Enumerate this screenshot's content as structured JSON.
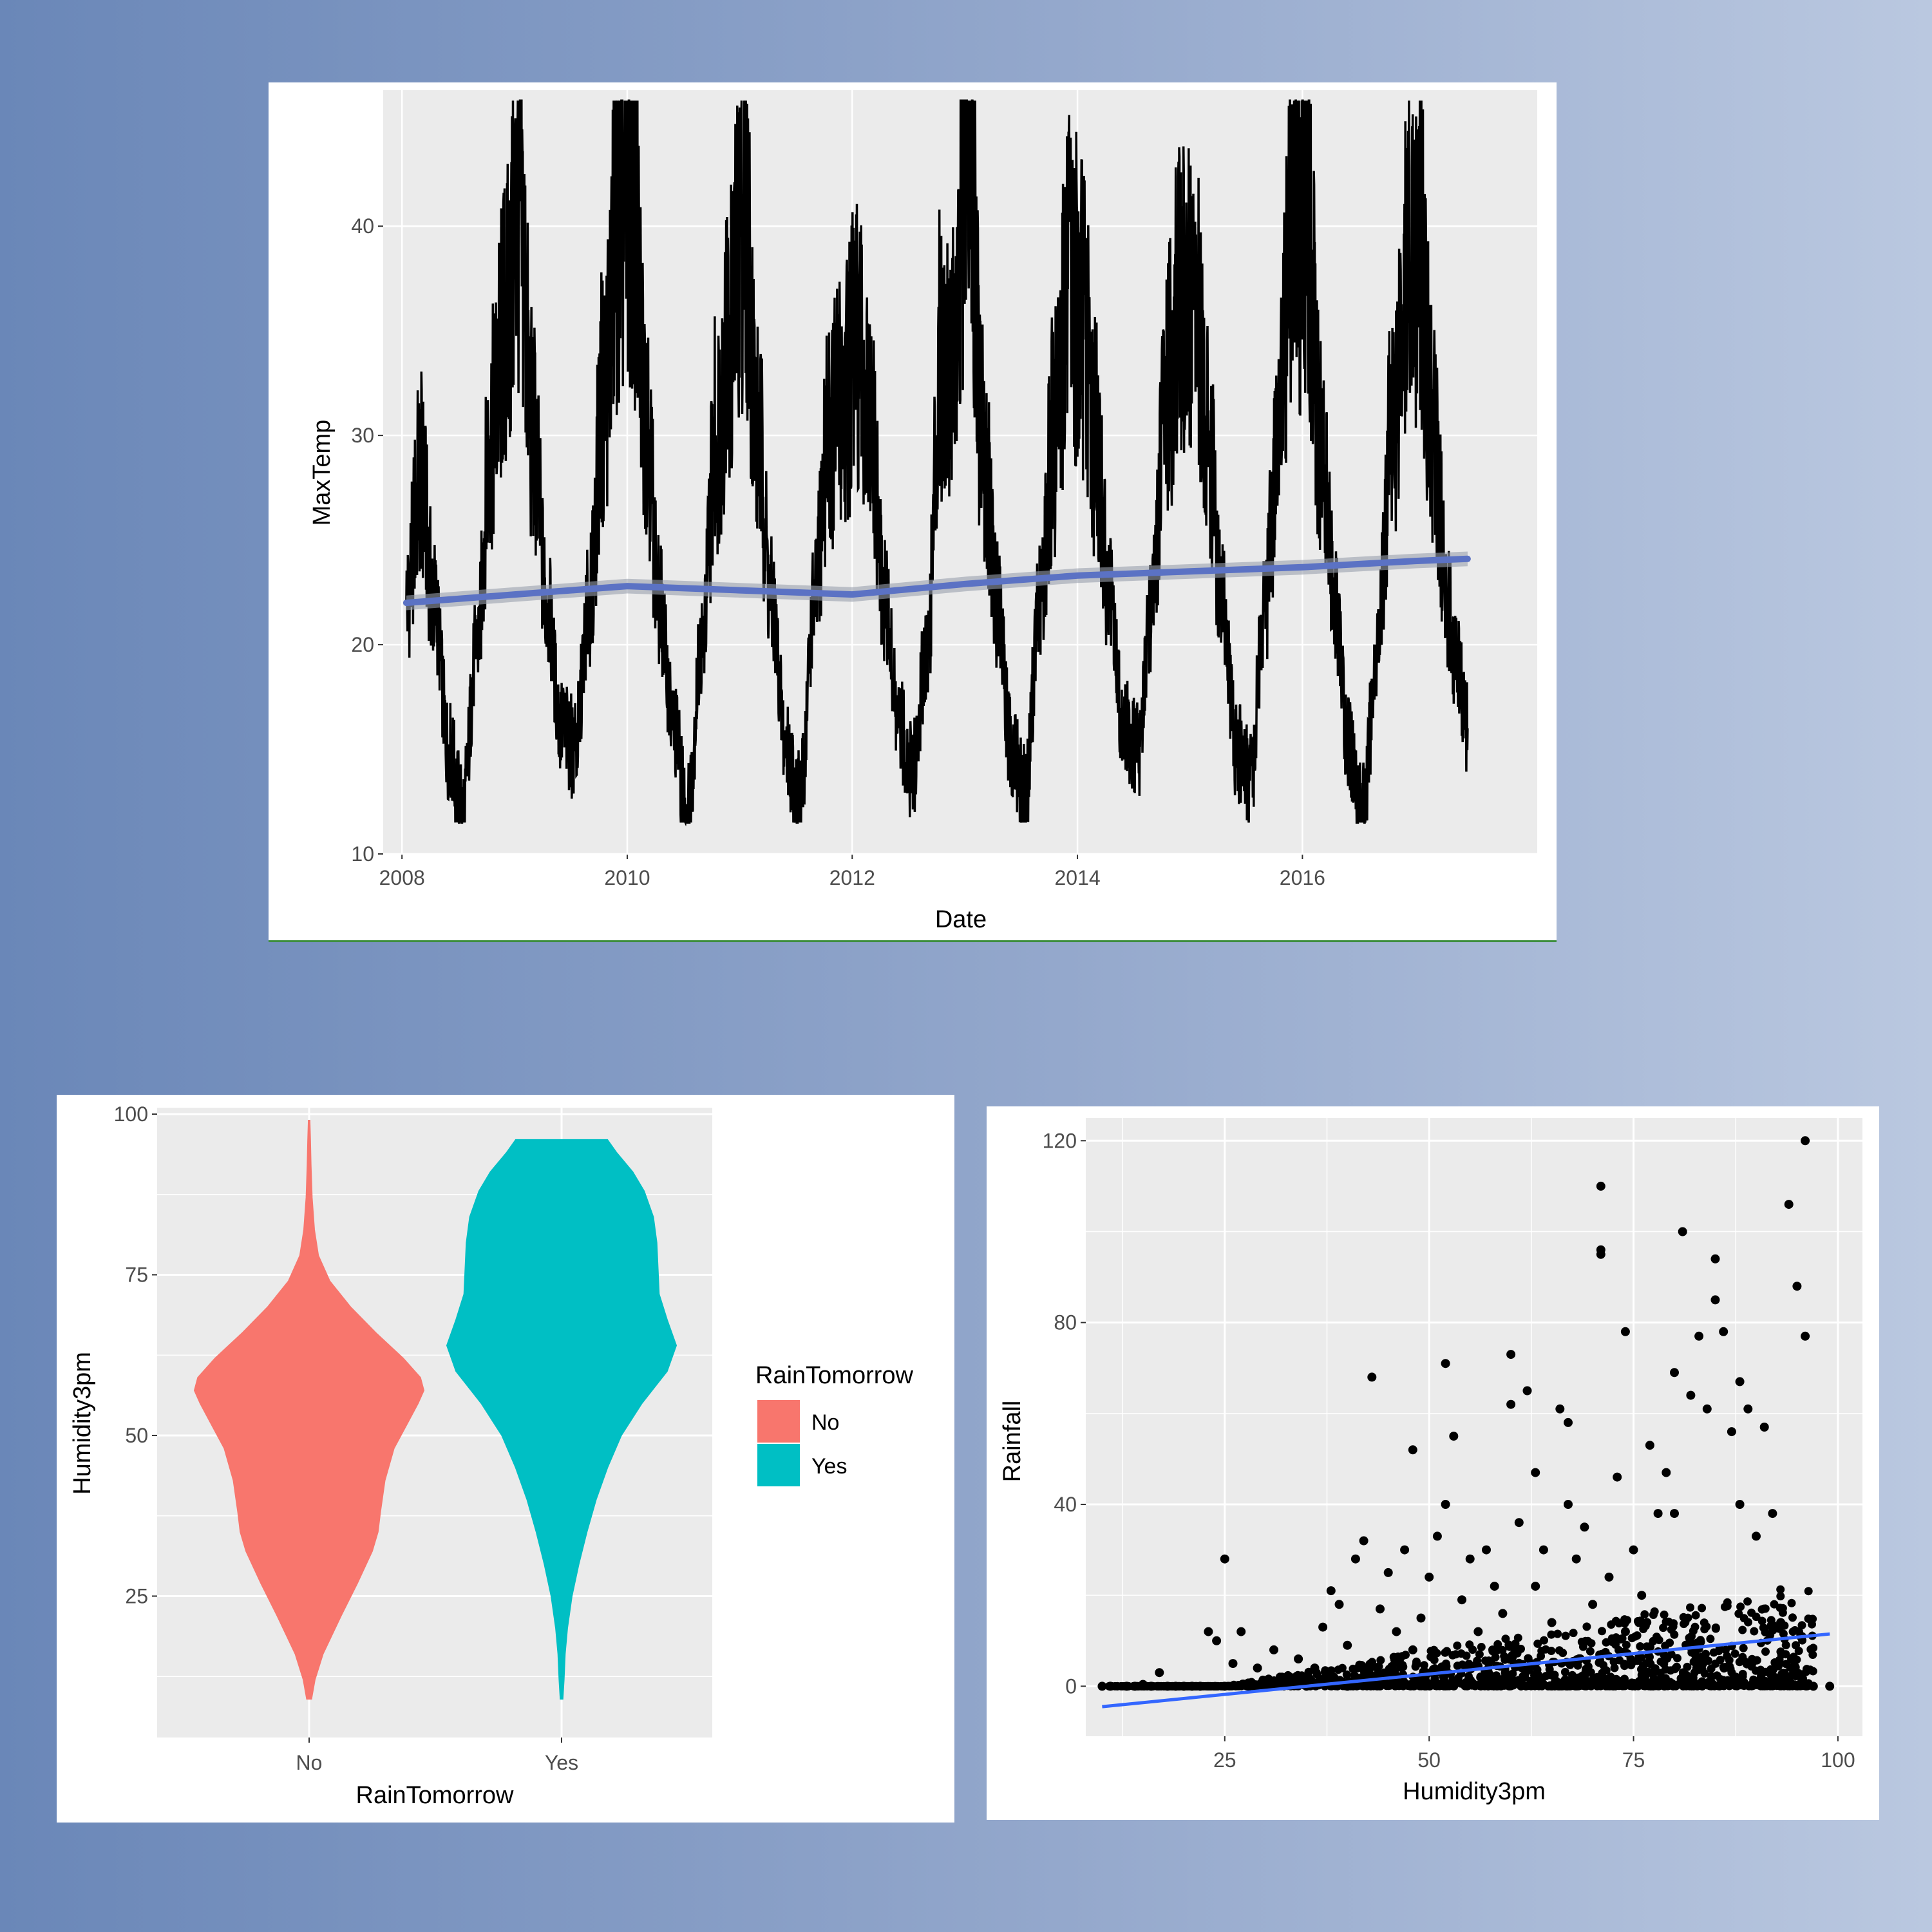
{
  "chart_data": [
    {
      "type": "line",
      "xlabel": "Date",
      "ylabel": "MaxTemp",
      "x_ticks": [
        "2008",
        "2010",
        "2012",
        "2014",
        "2016"
      ],
      "y_ticks": [
        "10",
        "20",
        "30",
        "40"
      ],
      "xlim": [
        "2007-11-01",
        "2018-02-01"
      ],
      "ylim": [
        10,
        46.5
      ],
      "grid": true,
      "series": [
        {
          "values_note_removed": true,
          "points": [
            [
              "2008-01-15",
              22
            ],
            [
              "2008-03-01",
              28
            ],
            [
              "2008-04-15",
              22
            ],
            [
              "2008-06-01",
              15
            ],
            [
              "2008-07-15",
              12
            ],
            [
              "2008-09-01",
              20
            ],
            [
              "2008-10-15",
              30
            ],
            [
              "2008-12-01",
              35
            ],
            [
              "2009-01-15",
              41
            ],
            [
              "2009-03-01",
              30
            ],
            [
              "2009-04-15",
              22
            ],
            [
              "2009-06-01",
              16
            ],
            [
              "2009-07-15",
              15
            ],
            [
              "2009-09-01",
              22
            ],
            [
              "2009-10-15",
              32
            ],
            [
              "2009-12-01",
              40
            ],
            [
              "2010-01-15",
              41
            ],
            [
              "2010-03-01",
              32
            ],
            [
              "2010-04-15",
              22
            ],
            [
              "2010-06-01",
              16
            ],
            [
              "2010-07-15",
              12
            ],
            [
              "2010-09-01",
              20
            ],
            [
              "2010-10-15",
              30
            ],
            [
              "2010-12-01",
              35
            ],
            [
              "2011-01-15",
              41
            ],
            [
              "2011-03-01",
              30
            ],
            [
              "2011-04-15",
              22
            ],
            [
              "2011-06-01",
              15
            ],
            [
              "2011-07-15",
              12.5
            ],
            [
              "2011-09-01",
              22
            ],
            [
              "2011-10-15",
              30
            ],
            [
              "2011-12-01",
              32
            ],
            [
              "2012-01-15",
              34
            ],
            [
              "2012-03-01",
              30
            ],
            [
              "2012-04-15",
              22
            ],
            [
              "2012-06-01",
              16
            ],
            [
              "2012-07-15",
              14
            ],
            [
              "2012-09-01",
              20
            ],
            [
              "2012-10-15",
              34
            ],
            [
              "2012-12-01",
              34
            ],
            [
              "2013-01-08",
              45.5
            ],
            [
              "2013-03-01",
              30
            ],
            [
              "2013-04-15",
              22
            ],
            [
              "2013-06-01",
              15
            ],
            [
              "2013-07-15",
              13
            ],
            [
              "2013-09-01",
              22
            ],
            [
              "2013-10-15",
              30
            ],
            [
              "2013-12-01",
              37
            ],
            [
              "2014-01-15",
              36
            ],
            [
              "2014-03-01",
              30
            ],
            [
              "2014-04-15",
              22
            ],
            [
              "2014-06-01",
              16
            ],
            [
              "2014-07-15",
              15
            ],
            [
              "2014-09-01",
              22
            ],
            [
              "2014-10-15",
              32
            ],
            [
              "2014-12-01",
              36
            ],
            [
              "2015-01-15",
              36
            ],
            [
              "2015-03-01",
              30
            ],
            [
              "2015-04-15",
              22
            ],
            [
              "2015-06-01",
              15
            ],
            [
              "2015-07-15",
              13.5
            ],
            [
              "2015-09-01",
              22
            ],
            [
              "2015-10-15",
              30
            ],
            [
              "2015-12-01",
              41
            ],
            [
              "2016-01-15",
              40
            ],
            [
              "2016-03-01",
              30
            ],
            [
              "2016-04-15",
              22
            ],
            [
              "2016-06-01",
              15
            ],
            [
              "2016-07-15",
              12
            ],
            [
              "2016-09-01",
              20
            ],
            [
              "2016-10-15",
              30
            ],
            [
              "2016-12-01",
              38
            ],
            [
              "2017-01-15",
              39
            ],
            [
              "2017-03-01",
              30
            ],
            [
              "2017-04-15",
              22
            ],
            [
              "2017-05-15",
              19
            ],
            [
              "2017-06-20",
              16
            ]
          ]
        }
      ],
      "trend": [
        [
          "2008-01-15",
          22
        ],
        [
          "2009-01-01",
          22.4
        ],
        [
          "2010-01-01",
          22.8
        ],
        [
          "2011-01-01",
          22.6
        ],
        [
          "2012-01-01",
          22.4
        ],
        [
          "2013-01-01",
          22.9
        ],
        [
          "2014-01-01",
          23.3
        ],
        [
          "2015-01-01",
          23.5
        ],
        [
          "2016-01-01",
          23.7
        ],
        [
          "2017-01-01",
          24.0
        ],
        [
          "2017-06-20",
          24.1
        ]
      ],
      "colors": {
        "line": "#000000",
        "trend": "#5b72c4",
        "band": "#9aa0ad",
        "panel": "#ebebeb",
        "grid": "#ffffff"
      }
    },
    {
      "type": "violin",
      "xlabel": "RainTomorrow",
      "ylabel": "Humidity3pm",
      "categories": [
        "No",
        "Yes"
      ],
      "y_ticks": [
        "25",
        "50",
        "75",
        "100"
      ],
      "ylim": [
        3,
        101
      ],
      "legend": {
        "title": "RainTomorrow",
        "entries": [
          "No",
          "Yes"
        ],
        "position": "right"
      },
      "series": [
        {
          "name": "No",
          "color": "#f8766d",
          "profile": [
            [
              9,
              0.02
            ],
            [
              12,
              0.05
            ],
            [
              16,
              0.12
            ],
            [
              22,
              0.28
            ],
            [
              27,
              0.42
            ],
            [
              32,
              0.55
            ],
            [
              35,
              0.6
            ],
            [
              38,
              0.62
            ],
            [
              43,
              0.66
            ],
            [
              48,
              0.74
            ],
            [
              52,
              0.86
            ],
            [
              55,
              0.95
            ],
            [
              57,
              1.0
            ],
            [
              59,
              0.97
            ],
            [
              62,
              0.82
            ],
            [
              66,
              0.58
            ],
            [
              70,
              0.36
            ],
            [
              74,
              0.18
            ],
            [
              78,
              0.08
            ],
            [
              82,
              0.045
            ],
            [
              87,
              0.025
            ],
            [
              92,
              0.015
            ],
            [
              96,
              0.01
            ],
            [
              99,
              0.005
            ]
          ]
        },
        {
          "name": "Yes",
          "color": "#00bfc4",
          "profile": [
            [
              9,
              0.01
            ],
            [
              12,
              0.02
            ],
            [
              16,
              0.03
            ],
            [
              20,
              0.05
            ],
            [
              25,
              0.09
            ],
            [
              30,
              0.15
            ],
            [
              35,
              0.22
            ],
            [
              40,
              0.3
            ],
            [
              45,
              0.4
            ],
            [
              50,
              0.52
            ],
            [
              55,
              0.7
            ],
            [
              60,
              0.92
            ],
            [
              64,
              1.0
            ],
            [
              68,
              0.92
            ],
            [
              72,
              0.85
            ],
            [
              76,
              0.84
            ],
            [
              80,
              0.83
            ],
            [
              84,
              0.8
            ],
            [
              88,
              0.72
            ],
            [
              91,
              0.62
            ],
            [
              94,
              0.48
            ],
            [
              96,
              0.4
            ]
          ]
        }
      ]
    },
    {
      "type": "scatter",
      "xlabel": "Humidity3pm",
      "ylabel": "Rainfall",
      "x_ticks": [
        "25",
        "50",
        "75",
        "100"
      ],
      "y_ticks": [
        "0",
        "40",
        "80",
        "120"
      ],
      "xlim": [
        8,
        103
      ],
      "ylim": [
        -11,
        125
      ],
      "trend": [
        [
          10,
          -4.5
        ],
        [
          99,
          11.5
        ]
      ],
      "colors": {
        "point": "#000000",
        "trend": "#3366ff"
      },
      "points": [
        [
          10,
          0
        ],
        [
          11,
          0
        ],
        [
          13,
          0
        ],
        [
          14,
          0
        ],
        [
          15,
          0.4
        ],
        [
          16,
          0
        ],
        [
          17,
          3
        ],
        [
          18,
          0
        ],
        [
          19,
          0
        ],
        [
          20,
          0
        ],
        [
          21,
          0
        ],
        [
          22,
          0
        ],
        [
          23,
          12
        ],
        [
          24,
          10
        ],
        [
          25,
          0
        ],
        [
          25,
          28
        ],
        [
          26,
          5
        ],
        [
          27,
          12
        ],
        [
          28,
          0
        ],
        [
          29,
          4
        ],
        [
          30,
          0
        ],
        [
          31,
          8
        ],
        [
          32,
          2
        ],
        [
          33,
          1
        ],
        [
          34,
          6
        ],
        [
          35,
          0
        ],
        [
          36,
          4
        ],
        [
          37,
          13
        ],
        [
          38,
          21
        ],
        [
          39,
          18
        ],
        [
          40,
          9
        ],
        [
          40,
          0
        ],
        [
          41,
          28
        ],
        [
          42,
          32
        ],
        [
          43,
          68
        ],
        [
          44,
          17
        ],
        [
          45,
          25
        ],
        [
          46,
          12
        ],
        [
          47,
          30
        ],
        [
          48,
          52
        ],
        [
          48,
          8
        ],
        [
          49,
          15
        ],
        [
          50,
          24
        ],
        [
          51,
          33
        ],
        [
          52,
          71
        ],
        [
          52,
          40
        ],
        [
          53,
          55
        ],
        [
          54,
          19
        ],
        [
          55,
          28
        ],
        [
          56,
          12
        ],
        [
          57,
          30
        ],
        [
          58,
          22
        ],
        [
          59,
          16
        ],
        [
          60,
          73
        ],
        [
          60,
          62
        ],
        [
          61,
          36
        ],
        [
          62,
          65
        ],
        [
          63,
          47
        ],
        [
          63,
          22
        ],
        [
          64,
          30
        ],
        [
          65,
          14
        ],
        [
          66,
          61
        ],
        [
          67,
          58
        ],
        [
          67,
          40
        ],
        [
          68,
          28
        ],
        [
          69,
          35
        ],
        [
          70,
          18
        ],
        [
          71,
          110
        ],
        [
          71,
          96
        ],
        [
          71,
          95
        ],
        [
          72,
          24
        ],
        [
          73,
          46
        ],
        [
          74,
          78
        ],
        [
          74,
          12
        ],
        [
          75,
          30
        ],
        [
          76,
          20
        ],
        [
          77,
          53
        ],
        [
          78,
          38
        ],
        [
          79,
          47
        ],
        [
          80,
          69
        ],
        [
          80,
          38
        ],
        [
          81,
          100
        ],
        [
          82,
          64
        ],
        [
          83,
          77
        ],
        [
          84,
          61
        ],
        [
          85,
          94
        ],
        [
          85,
          85
        ],
        [
          86,
          78
        ],
        [
          87,
          56
        ],
        [
          88,
          67
        ],
        [
          88,
          40
        ],
        [
          89,
          61
        ],
        [
          90,
          33
        ],
        [
          91,
          57
        ],
        [
          92,
          38
        ],
        [
          93,
          14
        ],
        [
          94,
          106
        ],
        [
          95,
          88
        ],
        [
          96,
          120
        ],
        [
          96,
          77
        ],
        [
          97,
          0
        ],
        [
          99,
          0
        ]
      ]
    }
  ]
}
